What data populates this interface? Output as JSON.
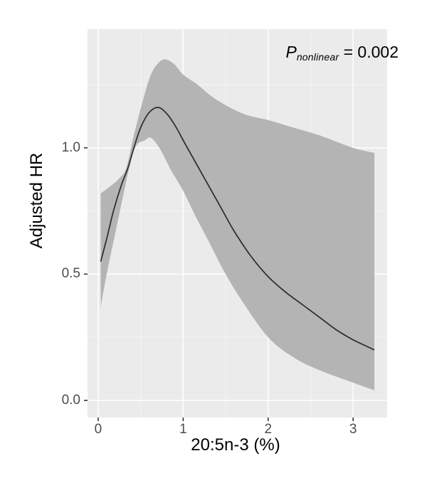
{
  "figure": {
    "x_axis": {
      "title": "20:5n-3 (%)",
      "tick_labels": [
        "0",
        "1",
        "2",
        "3"
      ]
    },
    "y_axis": {
      "title": "Adjusted HR",
      "tick_labels": [
        "0.0",
        "0.5",
        "1.0"
      ]
    },
    "annotation": {
      "p": "P",
      "sub": "nonlinear",
      "value": " = 0.002"
    }
  },
  "chart_data": {
    "type": "line",
    "title": "",
    "xlabel": "20:5n-3 (%)",
    "ylabel": "Adjusted HR",
    "annotation": "P_nonlinear = 0.002",
    "xlim": [
      -0.125,
      3.4
    ],
    "ylim": [
      -0.068,
      1.47
    ],
    "x_major_ticks": [
      0,
      1,
      2,
      3
    ],
    "y_major_ticks": [
      0,
      0.5,
      1.0
    ],
    "x_minor_ticks": [
      0.5,
      1.5,
      2.5
    ],
    "y_minor_ticks": [
      0.25,
      0.75,
      1.25
    ],
    "grid": "white major and minor gridlines on gray panel (ggplot style)",
    "legend": "none",
    "series": [
      {
        "name": "Adjusted HR (restricted cubic spline)",
        "role": "line",
        "x": [
          0.03,
          0.1,
          0.18,
          0.27,
          0.35,
          0.42,
          0.5,
          0.6,
          0.71,
          0.82,
          0.92,
          1.0,
          1.15,
          1.3,
          1.45,
          1.6,
          1.8,
          2.0,
          2.2,
          2.4,
          2.6,
          2.8,
          3.0,
          3.25
        ],
        "y": [
          0.55,
          0.64,
          0.75,
          0.85,
          0.92,
          1.0,
          1.08,
          1.14,
          1.16,
          1.13,
          1.08,
          1.03,
          0.94,
          0.85,
          0.76,
          0.67,
          0.57,
          0.49,
          0.43,
          0.38,
          0.33,
          0.28,
          0.24,
          0.2
        ]
      },
      {
        "name": "95% CI upper bound",
        "role": "ribbon-upper",
        "x": [
          0.03,
          0.15,
          0.25,
          0.33,
          0.42,
          0.52,
          0.62,
          0.72,
          0.8,
          0.9,
          1.0,
          1.17,
          1.35,
          1.55,
          1.75,
          2.0,
          2.3,
          2.6,
          3.0,
          3.25
        ],
        "y": [
          0.82,
          0.85,
          0.88,
          0.92,
          1.05,
          1.18,
          1.29,
          1.34,
          1.35,
          1.33,
          1.29,
          1.25,
          1.2,
          1.16,
          1.13,
          1.11,
          1.08,
          1.05,
          1.0,
          0.98
        ]
      },
      {
        "name": "95% CI lower bound",
        "role": "ribbon-lower",
        "x": [
          0.03,
          0.1,
          0.2,
          0.3,
          0.38,
          0.45,
          0.55,
          0.62,
          0.72,
          0.86,
          1.0,
          1.13,
          1.3,
          1.5,
          1.7,
          2.0,
          2.3,
          2.6,
          3.0,
          3.25
        ],
        "y": [
          0.37,
          0.5,
          0.66,
          0.82,
          0.94,
          1.01,
          1.03,
          1.04,
          1.0,
          0.91,
          0.83,
          0.74,
          0.63,
          0.5,
          0.39,
          0.25,
          0.17,
          0.12,
          0.07,
          0.04
        ]
      }
    ],
    "colors": {
      "panel_background": "#EBEBEB",
      "gridline": "#FFFFFF",
      "ribbon_fill": "#B4B4B4",
      "line": "#2B2B2B",
      "tick_mark": "#333333",
      "tick_label": "#4D4D4D",
      "axis_title": "#000000"
    }
  }
}
